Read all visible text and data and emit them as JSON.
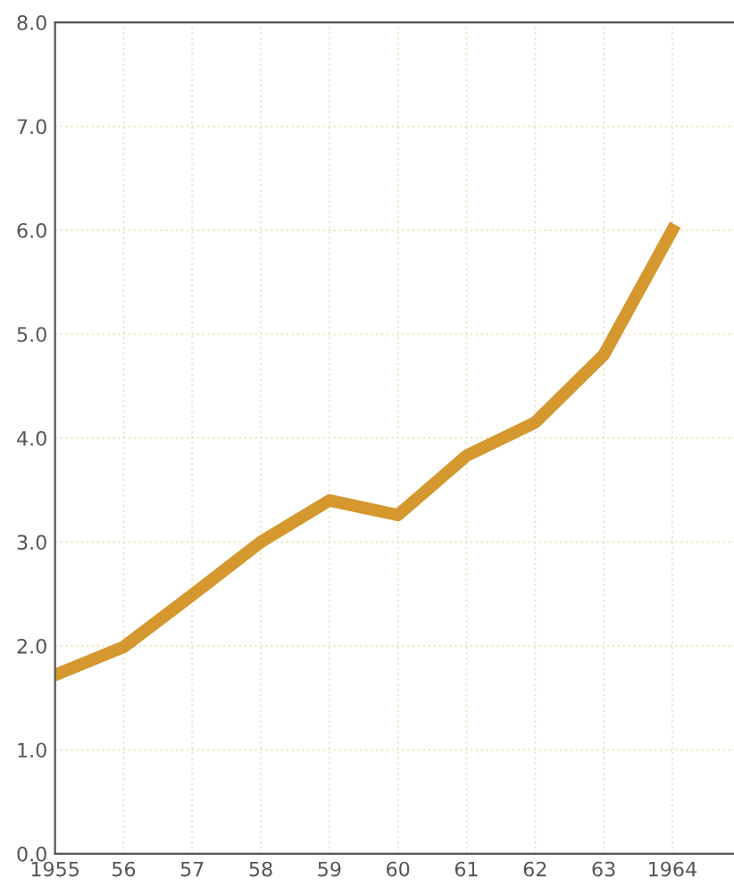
{
  "chart_data": {
    "type": "line",
    "categories": [
      "1955",
      "56",
      "57",
      "58",
      "59",
      "60",
      "61",
      "62",
      "63",
      "1964"
    ],
    "series": [
      {
        "color": "#d4982e",
        "values": [
          1.72,
          1.99,
          2.49,
          3.0,
          3.4,
          3.26,
          3.83,
          4.15,
          4.8,
          6.0
        ]
      }
    ],
    "ylim": [
      0,
      8
    ],
    "yticks": [
      {
        "value": 0,
        "label": "0.0"
      },
      {
        "value": 1,
        "label": "1.0"
      },
      {
        "value": 2,
        "label": "2.0"
      },
      {
        "value": 3,
        "label": "3.0"
      },
      {
        "value": 4,
        "label": "4.0"
      },
      {
        "value": 5,
        "label": "5.0"
      },
      {
        "value": 6,
        "label": "6.0"
      },
      {
        "value": 7,
        "label": "7.0"
      },
      {
        "value": 8,
        "label": "8.0"
      }
    ],
    "grid": true,
    "marker": "none",
    "line_style": "solid"
  }
}
